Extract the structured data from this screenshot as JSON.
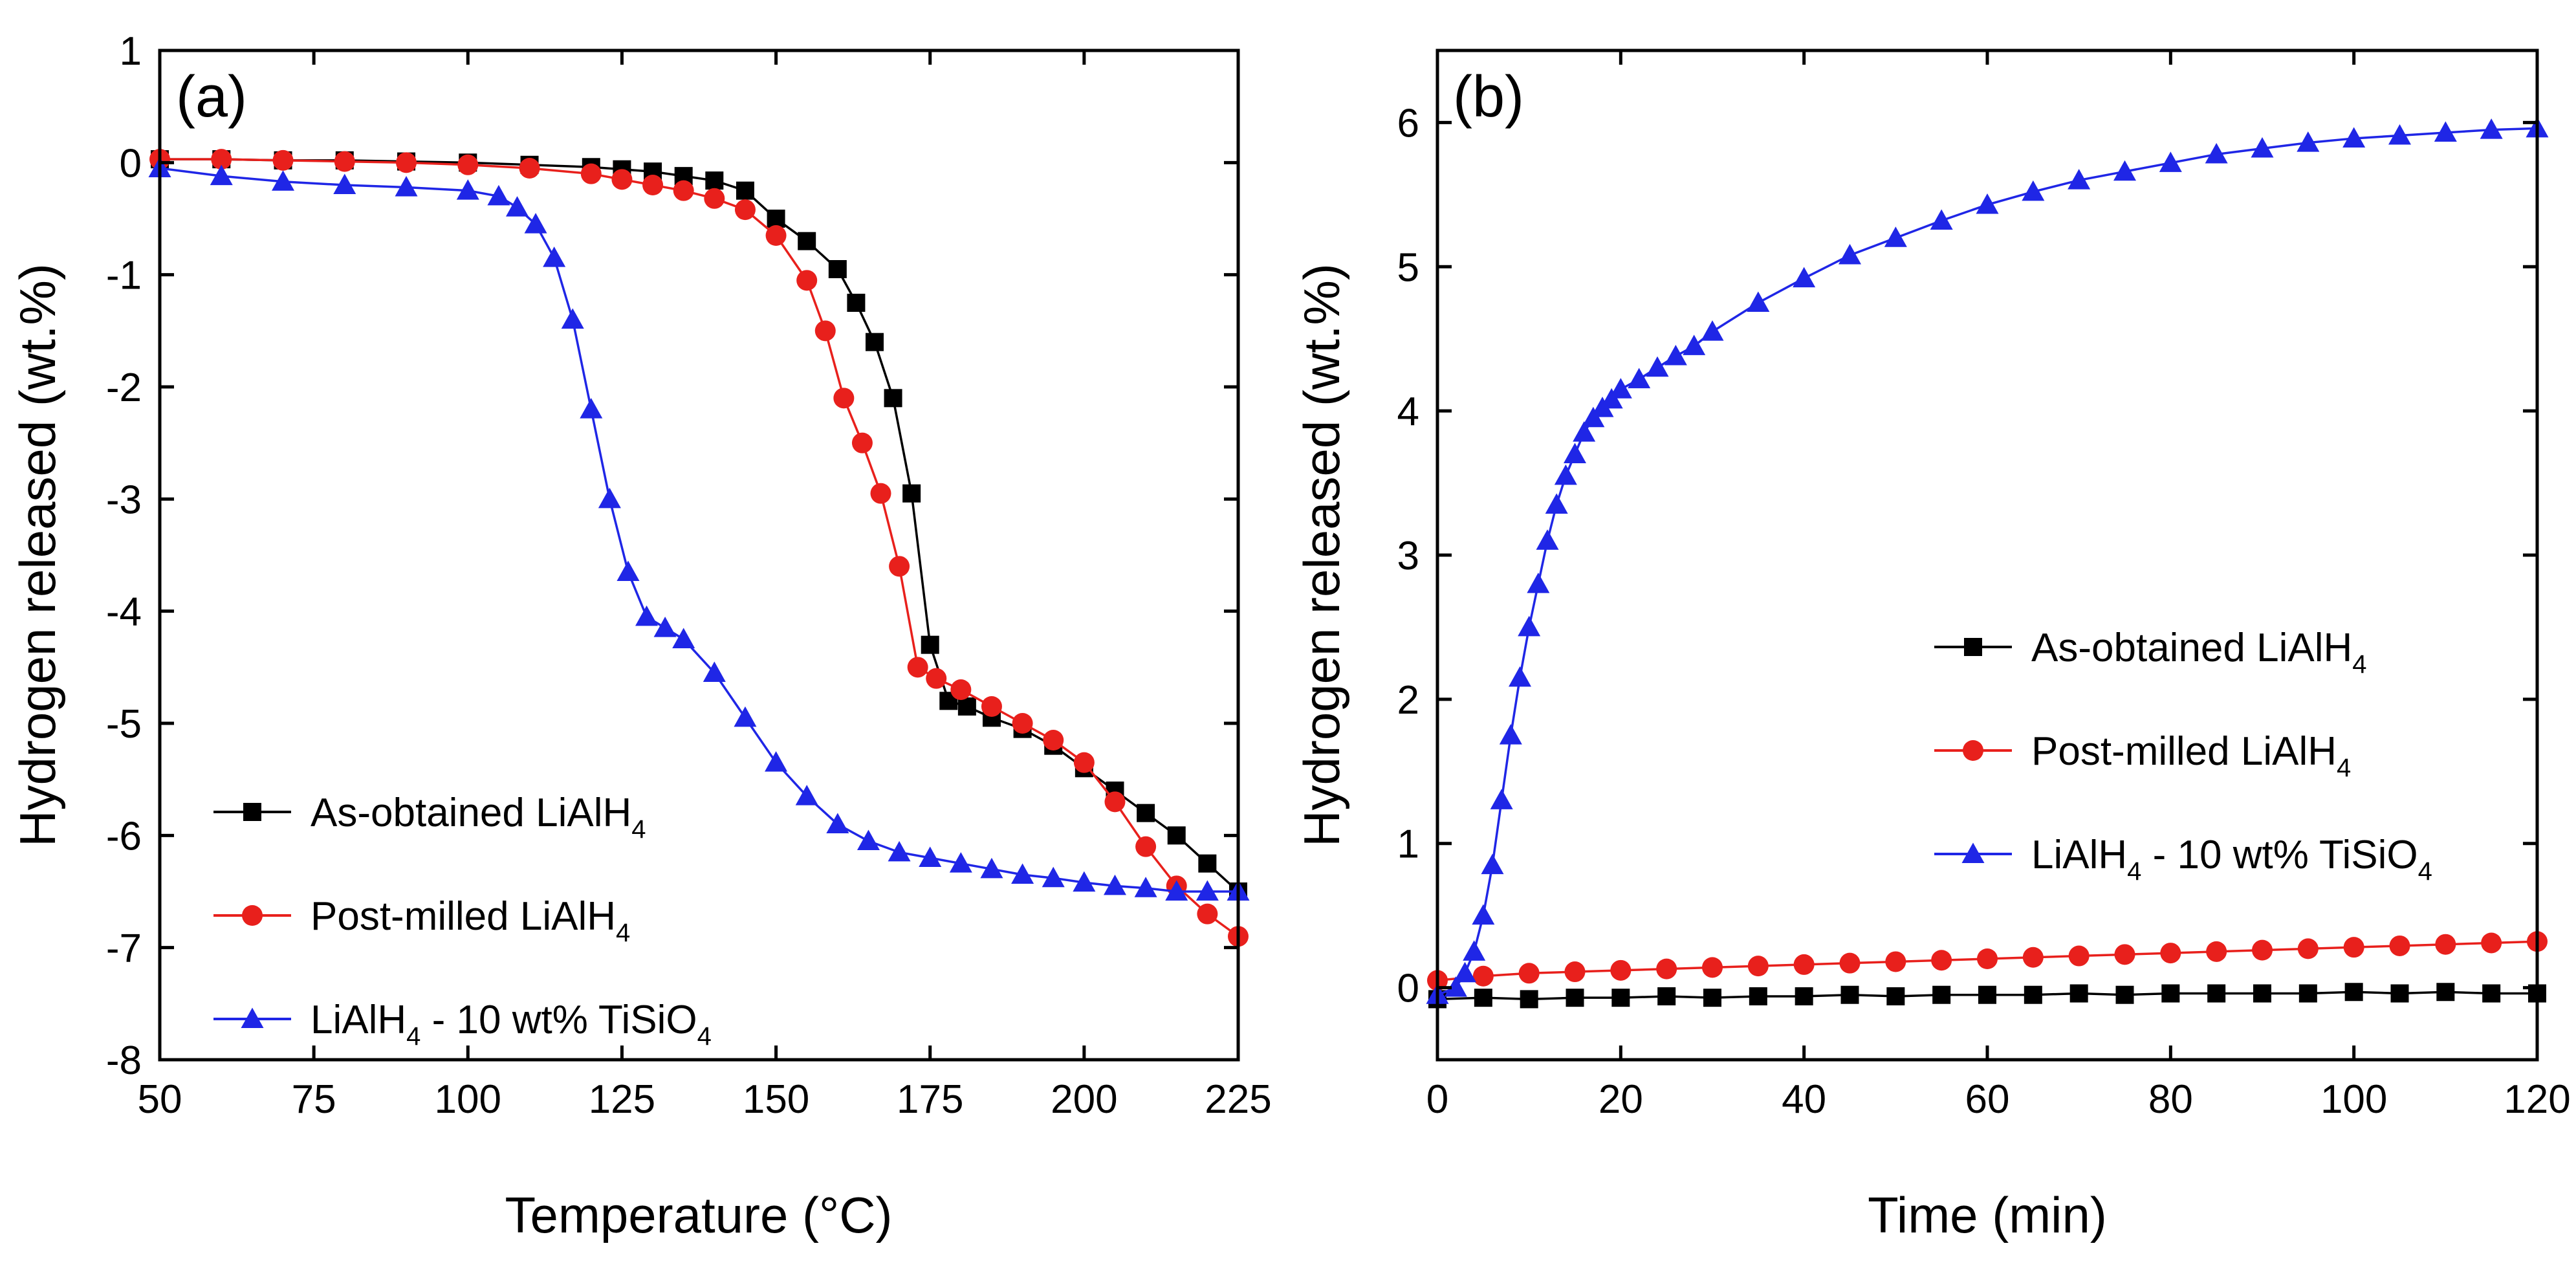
{
  "chart_data": [
    {
      "panel": "(a)",
      "type": "line",
      "xlabel": "Temperature (°C)",
      "ylabel": "Hydrogen released (wt.%)",
      "xlim": [
        50,
        225
      ],
      "ylim": [
        -8,
        1
      ],
      "xticks": [
        50,
        75,
        100,
        125,
        150,
        175,
        200,
        225
      ],
      "yticks": [
        1,
        0,
        -1,
        -2,
        -3,
        -4,
        -5,
        -6,
        -7,
        -8
      ],
      "xtick_labels": [
        "50",
        "75",
        "100",
        "125",
        "150",
        "175",
        "200",
        "225"
      ],
      "ytick_labels": [
        "1",
        "0",
        "-1",
        "-2",
        "-3",
        "-4",
        "-5",
        "-6",
        "-7",
        "-8"
      ],
      "legend_position": "bottom-left",
      "series": [
        {
          "name": "As-obtained LiAlH4",
          "legend_main": "As-obtained LiAlH",
          "legend_sub": "4",
          "legend_suffix": "",
          "color": "#000000",
          "marker": "square",
          "x": [
            50,
            60,
            70,
            80,
            90,
            100,
            110,
            120,
            125,
            130,
            135,
            140,
            145,
            150,
            155,
            160,
            163,
            166,
            169,
            172,
            175,
            178,
            181,
            185,
            190,
            195,
            200,
            205,
            210,
            215,
            220,
            225
          ],
          "y": [
            0.03,
            0.03,
            0.02,
            0.02,
            0.01,
            0.0,
            -0.02,
            -0.04,
            -0.06,
            -0.08,
            -0.12,
            -0.16,
            -0.25,
            -0.5,
            -0.7,
            -0.95,
            -1.25,
            -1.6,
            -2.1,
            -2.95,
            -4.3,
            -4.8,
            -4.85,
            -4.95,
            -5.05,
            -5.2,
            -5.4,
            -5.6,
            -5.8,
            -6.0,
            -6.25,
            -6.5
          ]
        },
        {
          "name": "Post-milled LiAlH4",
          "legend_main": "Post-milled LiAlH",
          "legend_sub": "4",
          "legend_suffix": "",
          "color": "#e8201c",
          "marker": "circle",
          "x": [
            50,
            60,
            70,
            80,
            90,
            100,
            110,
            120,
            125,
            130,
            135,
            140,
            145,
            150,
            155,
            158,
            161,
            164,
            167,
            170,
            173,
            176,
            180,
            185,
            190,
            195,
            200,
            205,
            210,
            215,
            220,
            225
          ],
          "y": [
            0.03,
            0.03,
            0.02,
            0.01,
            0.0,
            -0.02,
            -0.05,
            -0.1,
            -0.15,
            -0.2,
            -0.25,
            -0.32,
            -0.42,
            -0.65,
            -1.05,
            -1.5,
            -2.1,
            -2.5,
            -2.95,
            -3.6,
            -4.5,
            -4.6,
            -4.7,
            -4.85,
            -5.0,
            -5.15,
            -5.35,
            -5.7,
            -6.1,
            -6.45,
            -6.7,
            -6.9
          ]
        },
        {
          "name": "LiAlH4 - 10 wt% TiSiO4",
          "legend_main": "LiAlH",
          "legend_sub": "4",
          "legend_suffix": " - 10 wt% TiSiO",
          "legend_sub2": "4",
          "color": "#1f26e6",
          "marker": "triangle",
          "x": [
            50,
            60,
            70,
            80,
            90,
            100,
            105,
            108,
            111,
            114,
            117,
            120,
            123,
            126,
            129,
            132,
            135,
            140,
            145,
            150,
            155,
            160,
            165,
            170,
            175,
            180,
            185,
            190,
            195,
            200,
            205,
            210,
            215,
            220,
            225
          ],
          "y": [
            -0.05,
            -0.12,
            -0.17,
            -0.2,
            -0.22,
            -0.25,
            -0.3,
            -0.4,
            -0.55,
            -0.85,
            -1.4,
            -2.2,
            -3.0,
            -3.65,
            -4.05,
            -4.15,
            -4.25,
            -4.55,
            -4.95,
            -5.35,
            -5.65,
            -5.9,
            -6.05,
            -6.15,
            -6.2,
            -6.25,
            -6.3,
            -6.35,
            -6.38,
            -6.42,
            -6.45,
            -6.47,
            -6.5,
            -6.5,
            -6.5
          ]
        }
      ]
    },
    {
      "panel": "(b)",
      "type": "line",
      "xlabel": "Time (min)",
      "ylabel": "Hydrogen released (wt.%)",
      "xlim": [
        0,
        120
      ],
      "ylim": [
        -0.5,
        6.5
      ],
      "xticks": [
        0,
        20,
        40,
        60,
        80,
        100,
        120
      ],
      "yticks": [
        0,
        1,
        2,
        3,
        4,
        5,
        6
      ],
      "xtick_labels": [
        "0",
        "20",
        "40",
        "60",
        "80",
        "100",
        "120"
      ],
      "ytick_labels": [
        "0",
        "1",
        "2",
        "3",
        "4",
        "5",
        "6"
      ],
      "legend_position": "middle-right",
      "series": [
        {
          "name": "As-obtained LiAlH4",
          "legend_main": "As-obtained LiAlH",
          "legend_sub": "4",
          "legend_suffix": "",
          "color": "#000000",
          "marker": "square",
          "x": [
            0,
            5,
            10,
            15,
            20,
            25,
            30,
            35,
            40,
            45,
            50,
            55,
            60,
            65,
            70,
            75,
            80,
            85,
            90,
            95,
            100,
            105,
            110,
            115,
            120
          ],
          "y": [
            -0.08,
            -0.07,
            -0.08,
            -0.07,
            -0.07,
            -0.06,
            -0.07,
            -0.06,
            -0.06,
            -0.05,
            -0.06,
            -0.05,
            -0.05,
            -0.05,
            -0.04,
            -0.05,
            -0.04,
            -0.04,
            -0.04,
            -0.04,
            -0.03,
            -0.04,
            -0.03,
            -0.04,
            -0.04
          ]
        },
        {
          "name": "Post-milled LiAlH4",
          "legend_main": "Post-milled LiAlH",
          "legend_sub": "4",
          "legend_suffix": "",
          "color": "#e8201c",
          "marker": "circle",
          "x": [
            0,
            5,
            10,
            15,
            20,
            25,
            30,
            35,
            40,
            45,
            50,
            55,
            60,
            65,
            70,
            75,
            80,
            85,
            90,
            95,
            100,
            105,
            110,
            115,
            120
          ],
          "y": [
            0.05,
            0.08,
            0.1,
            0.11,
            0.12,
            0.13,
            0.14,
            0.15,
            0.16,
            0.17,
            0.18,
            0.19,
            0.2,
            0.21,
            0.22,
            0.23,
            0.24,
            0.25,
            0.26,
            0.27,
            0.28,
            0.29,
            0.3,
            0.31,
            0.32
          ]
        },
        {
          "name": "LiAlH4 - 10 wt% TiSiO4",
          "legend_main": "LiAlH",
          "legend_sub": "4",
          "legend_suffix": " - 10 wt% TiSiO",
          "legend_sub2": "4",
          "color": "#1f26e6",
          "marker": "triangle",
          "x": [
            0,
            2,
            3,
            4,
            5,
            6,
            7,
            8,
            9,
            10,
            11,
            12,
            13,
            14,
            15,
            16,
            17,
            18,
            19,
            20,
            22,
            24,
            26,
            28,
            30,
            35,
            40,
            45,
            50,
            55,
            60,
            65,
            70,
            75,
            80,
            85,
            90,
            95,
            100,
            105,
            110,
            115,
            120
          ],
          "y": [
            -0.05,
            0.0,
            0.1,
            0.25,
            0.5,
            0.85,
            1.3,
            1.75,
            2.15,
            2.5,
            2.8,
            3.1,
            3.35,
            3.55,
            3.7,
            3.85,
            3.95,
            4.02,
            4.08,
            4.15,
            4.22,
            4.3,
            4.38,
            4.45,
            4.55,
            4.75,
            4.92,
            5.08,
            5.2,
            5.32,
            5.43,
            5.52,
            5.6,
            5.66,
            5.72,
            5.78,
            5.82,
            5.86,
            5.89,
            5.91,
            5.93,
            5.95,
            5.96
          ]
        }
      ]
    }
  ]
}
